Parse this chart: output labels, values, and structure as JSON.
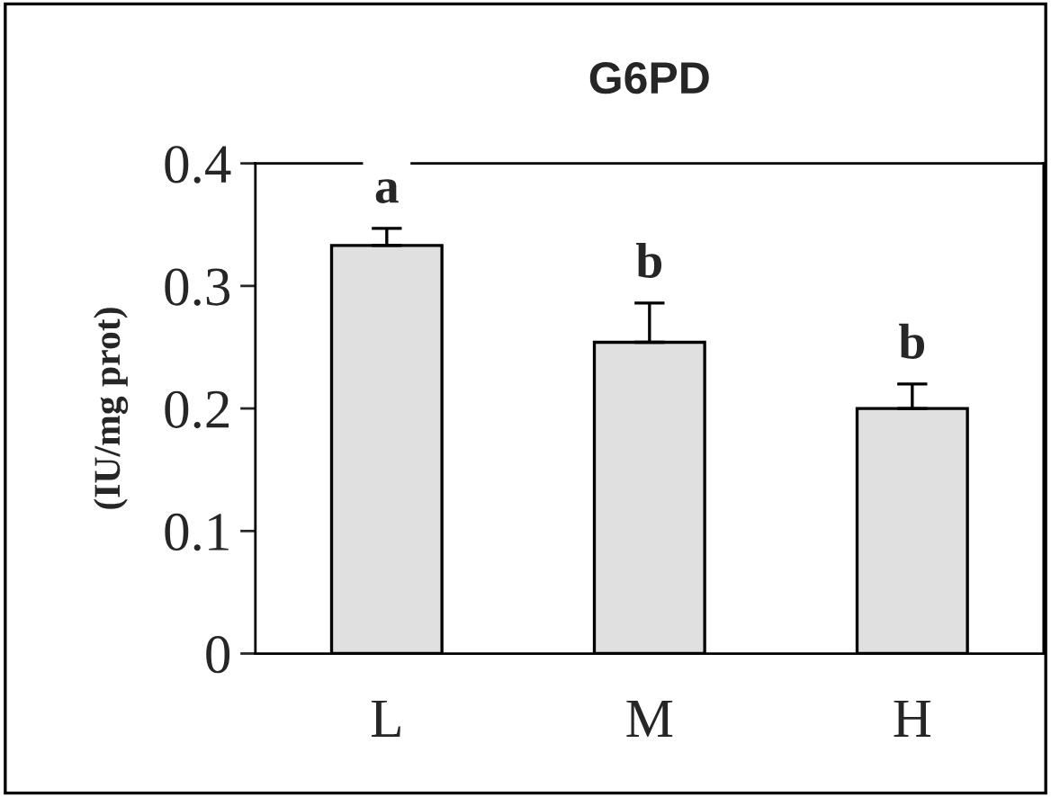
{
  "chart_data": {
    "type": "bar",
    "title": "G6PD",
    "ylabel": "(IU/mg prot)",
    "categories": [
      "L",
      "M",
      "H"
    ],
    "values": [
      0.333,
      0.254,
      0.2
    ],
    "errors": [
      0.014,
      0.032,
      0.02
    ],
    "color": "#e0e0e0",
    "ylim": [
      0,
      0.4
    ],
    "yticks": [
      {
        "value": 0,
        "label": "0"
      },
      0.1,
      0.2,
      0.3,
      0.4
    ],
    "grid": false,
    "annotations": [
      {
        "text": "a",
        "x": "L",
        "y": 0.347
      },
      {
        "text": "b",
        "x": "M",
        "y": 0.286
      },
      {
        "text": "b",
        "x": "H",
        "y": 0.22
      }
    ]
  }
}
